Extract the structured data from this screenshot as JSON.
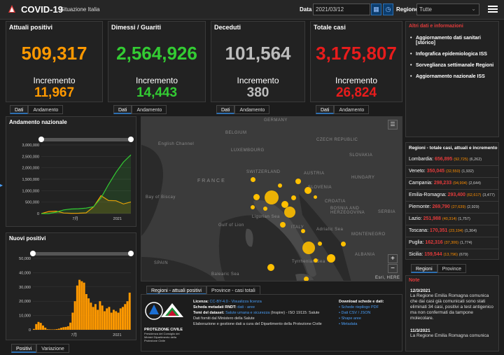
{
  "header": {
    "title": "COVID-19",
    "subtitle": "Situazione Italia",
    "date_label": "Data",
    "date_value": "2021/03/12",
    "region_label": "Regione",
    "region_value": "Tutte"
  },
  "stats": [
    {
      "title": "Attuali positivi",
      "value": "509,317",
      "inc_label": "Incremento",
      "inc": "11,967",
      "color": "#ff9900",
      "tabs": [
        "Dati",
        "Andamento"
      ]
    },
    {
      "title": "Dimessi / Guariti",
      "value": "2,564,926",
      "inc_label": "Incremento",
      "inc": "14,443",
      "color": "#33cc33",
      "tabs": [
        "Dati",
        "Andamento"
      ]
    },
    {
      "title": "Deceduti",
      "value": "101,564",
      "inc_label": "Incremento",
      "inc": "380",
      "color": "#bdbdbd",
      "tabs": [
        "Dati",
        "Andamento"
      ]
    },
    {
      "title": "Totale casi",
      "value": "3,175,807",
      "inc_label": "Incremento",
      "inc": "26,824",
      "color": "#e81c1c",
      "tabs": [
        "Dati",
        "Andamento"
      ]
    }
  ],
  "chart_andamento": {
    "title": "Andamento nazionale",
    "yticks": [
      "3,000,000",
      "2,500,000",
      "2,000,000",
      "1,500,000",
      "1,000,000",
      "500,000",
      "0"
    ],
    "xticks": [
      "7月",
      "2021"
    ]
  },
  "chart_nuovi": {
    "title": "Nuovi positivi",
    "yticks": [
      "50,000",
      "40,000",
      "30,000",
      "20,000",
      "10,000",
      "0"
    ],
    "xticks": [
      "7月",
      "2021"
    ],
    "tabs": [
      "Positivi",
      "Variazione"
    ]
  },
  "chart_data": [
    {
      "type": "line",
      "title": "Andamento nazionale",
      "ylim": [
        0,
        3000000
      ],
      "series": [
        {
          "color": "#ff9900",
          "values": [
            0,
            90000,
            105000,
            25000,
            12000,
            15000,
            30000,
            290000,
            780000,
            570000,
            560000,
            420000,
            509317
          ]
        },
        {
          "color": "#33cc33",
          "values": [
            0,
            1000,
            60000,
            160000,
            200000,
            212000,
            240000,
            300000,
            690000,
            1270000,
            1800000,
            2250000,
            2564926
          ]
        }
      ]
    },
    {
      "type": "bar",
      "title": "Nuovi positivi",
      "ylim": [
        0,
        50000
      ],
      "values": [
        600,
        4000,
        5500,
        4800,
        3000,
        1500,
        400,
        300,
        250,
        300,
        500,
        800,
        1400,
        1800,
        2000,
        2500,
        5000,
        12000,
        20000,
        31000,
        35000,
        34000,
        33000,
        25000,
        22000,
        19000,
        16000,
        18000,
        14000,
        20000,
        17000,
        13000,
        15000,
        16000,
        12000,
        14000,
        13000,
        12000,
        15000,
        16000,
        18000,
        20000,
        26000
      ]
    }
  ],
  "map": {
    "tabs": [
      "Regioni - attuali positivi",
      "Province - casi totali"
    ],
    "labels": [
      "GERMANY",
      "BELGIUM",
      "English Channel",
      "LUXEMBOURG",
      "CZECH REPUBLIC",
      "SLOVAKIA",
      "FRANCE",
      "SWITZERLAND",
      "AUSTRIA",
      "HUNGARY",
      "SLOVENIA",
      "CROATIA",
      "Bay of Biscay",
      "BOSNIA AND HERZEGOVINA",
      "SERBIA",
      "Ligurian Sea",
      "Gulf of Lion",
      "ITALY",
      "Adriatic Sea",
      "MONTENEGRO",
      "SPAIN",
      "Tyrrhenian Sea",
      "ALBANIA",
      "Balearic Sea",
      "Esri, HERE"
    ]
  },
  "links": {
    "title": "Altri dati e informazioni",
    "items": [
      "Aggiornamento dati sanitari [storico]",
      "Infografica epidemiologica ISS",
      "Sorveglianza settimanale Regioni",
      "Aggiornamento nazionale ISS"
    ]
  },
  "regions": {
    "title": "Regioni - totale casi, attuali e incremento",
    "items": [
      {
        "name": "Lombardia:",
        "total": "656,895",
        "active": "(92,725)",
        "inc": "(6,262)"
      },
      {
        "name": "Veneto:",
        "total": "350,045",
        "active": "(32,550)",
        "inc": "(1,932)"
      },
      {
        "name": "Campania:",
        "total": "298,233",
        "active": "(94,904)",
        "inc": "(2,644)"
      },
      {
        "name": "Emilia-Romagna:",
        "total": "293,400",
        "active": "(62,617)",
        "inc": "(3,477)"
      },
      {
        "name": "Piemonte:",
        "total": "269,790",
        "active": "(27,639)",
        "inc": "(2,929)"
      },
      {
        "name": "Lazio:",
        "total": "251,988",
        "active": "(40,314)",
        "inc": "(1,757)"
      },
      {
        "name": "Toscana:",
        "total": "170,351",
        "active": "(23,194)",
        "inc": "(1,304)"
      },
      {
        "name": "Puglia:",
        "total": "162,316",
        "active": "(37,306)",
        "inc": "(1,774)"
      },
      {
        "name": "Sicilia:",
        "total": "159,544",
        "active": "(13,796)",
        "inc": "(679)"
      }
    ],
    "tabs": [
      "Regioni",
      "Province"
    ]
  },
  "notes": {
    "title": "Note",
    "items": [
      {
        "date": "12/3/2021",
        "text": "La Regione Emilia Romagna comunica che dai casi già comunicati sono stati eliminati 34 casi, positivi a test antigenico ma non confermati da tampone molecolare."
      },
      {
        "date": "11/3/2021",
        "text": "La Regione Emilia Romagna comunica"
      }
    ]
  },
  "footer": {
    "logo_text": "PROTEZIONE CIVILE",
    "logo_sub": "Presidenza del Consiglio dei Ministri Dipartimento della Protezione Civile",
    "license_label": "Licenza:",
    "license_link": "CC-BY-4.0",
    "license_extra": "- Visualizza licenza",
    "meta_label": "Scheda metadati RNDT:",
    "meta_links": "dati - aree",
    "themes_label": "Temi del dataset:",
    "themes_link": "Salute umana e sicurezza",
    "themes_rest": "(Inspire) - ISO 19115: Salute",
    "source": "Dati forniti dal Ministero della Salute",
    "elab": "Elaborazione e gestione dati a cura del Dipartimento della Protezione Civile",
    "dl_title": "Download schede e dati:",
    "dl_items": [
      "Schede riepilogo PDF",
      "Dati CSV / JSON",
      "Shape aree",
      "Metadata"
    ]
  }
}
